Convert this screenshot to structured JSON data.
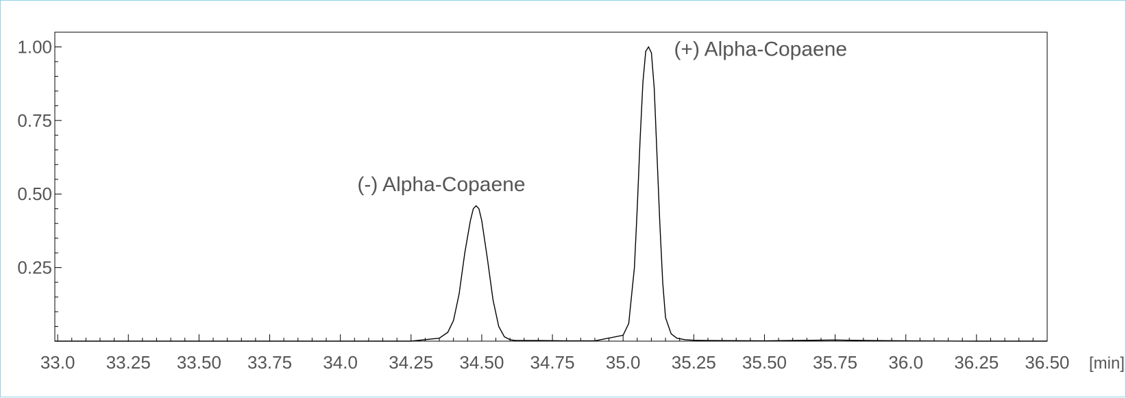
{
  "chart_data": {
    "type": "line",
    "title": "",
    "xlabel": "",
    "ylabel": "",
    "x_unit": "[min]",
    "xlim": [
      32.99,
      36.5
    ],
    "ylim": [
      0.0,
      1.05
    ],
    "x_ticks": [
      33.0,
      33.25,
      33.5,
      33.75,
      34.0,
      34.25,
      34.5,
      34.75,
      35.0,
      35.25,
      35.5,
      35.75,
      36.0,
      36.25,
      36.5
    ],
    "x_tick_labels": [
      "33.0",
      "33.25",
      "33.50",
      "33.75",
      "34.0",
      "34.25",
      "34.50",
      "34.75",
      "35.0",
      "35.25",
      "35.50",
      "35.75",
      "36.0",
      "36.25",
      "36.50"
    ],
    "y_ticks": [
      0.25,
      0.5,
      0.75,
      1.0
    ],
    "y_tick_labels": [
      "0.25",
      "0.50",
      "0.75",
      "1.00"
    ],
    "grid": false,
    "series": [
      {
        "color": "#000000",
        "x": [
          32.99,
          33.5,
          34.0,
          34.25,
          34.35,
          34.38,
          34.4,
          34.42,
          34.44,
          34.46,
          34.47,
          34.48,
          34.49,
          34.5,
          34.52,
          34.54,
          34.56,
          34.58,
          34.6,
          34.62,
          34.7,
          34.8,
          34.9,
          35.0,
          35.02,
          35.04,
          35.05,
          35.06,
          35.07,
          35.08,
          35.09,
          35.1,
          35.11,
          35.12,
          35.13,
          35.14,
          35.15,
          35.17,
          35.19,
          35.22,
          35.25,
          35.3,
          35.5,
          35.75,
          35.8,
          36.0,
          36.25,
          36.5
        ],
        "y": [
          0.0,
          0.0,
          0.0,
          0.0,
          0.01,
          0.03,
          0.07,
          0.16,
          0.3,
          0.41,
          0.45,
          0.46,
          0.45,
          0.41,
          0.28,
          0.14,
          0.05,
          0.015,
          0.005,
          0.002,
          0.002,
          0.001,
          0.001,
          0.02,
          0.06,
          0.25,
          0.45,
          0.68,
          0.88,
          0.985,
          1.0,
          0.98,
          0.86,
          0.63,
          0.4,
          0.2,
          0.08,
          0.025,
          0.01,
          0.005,
          0.003,
          0.002,
          0.001,
          0.004,
          0.003,
          0.001,
          0.0,
          0.0
        ]
      }
    ],
    "annotations": [
      {
        "text": "(-) Alpha-Copaene",
        "x": 34.06,
        "y": 0.51
      },
      {
        "text": "(+) Alpha-Copaene",
        "x": 35.18,
        "y": 0.97
      }
    ]
  }
}
